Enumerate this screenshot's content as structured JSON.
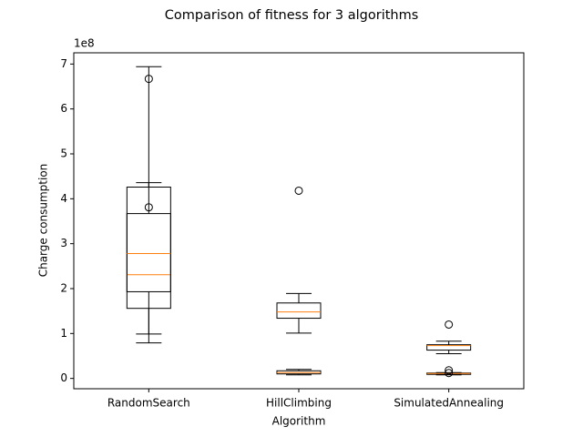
{
  "chart_data": {
    "type": "box",
    "title": "Comparison of fitness for 3 algorithms",
    "x_label": "Algorithm",
    "y_label": "Charge consumption",
    "y_offset_label": "1e8",
    "categories": [
      "RandomSearch",
      "HillClimbing",
      "SimulatedAnnealing"
    ],
    "box_color": "#000000",
    "median_color": "#ff7f0e",
    "series": [
      {
        "values": [
          {
            "whislo": 0.79,
            "q1": 1.56,
            "med": 2.31,
            "q3": 4.26,
            "whishi": 6.94,
            "fliers": []
          },
          {
            "whislo": 1.01,
            "q1": 1.34,
            "med": 1.48,
            "q3": 1.68,
            "whishi": 1.89,
            "fliers": [
              4.18
            ]
          },
          {
            "whislo": 0.55,
            "q1": 0.63,
            "med": 0.73,
            "q3": 0.75,
            "whishi": 0.83,
            "fliers": [
              1.2
            ]
          }
        ]
      },
      {
        "values": [
          {
            "whislo": 0.99,
            "q1": 1.93,
            "med": 2.78,
            "q3": 3.67,
            "whishi": 4.36,
            "fliers": [
              3.81,
              6.67
            ]
          },
          {
            "whislo": 0.08,
            "q1": 0.1,
            "med": 0.13,
            "q3": 0.17,
            "whishi": 0.2,
            "fliers": []
          },
          {
            "whislo": 0.08,
            "q1": 0.09,
            "med": 0.11,
            "q3": 0.12,
            "whishi": 0.13,
            "fliers": [
              0.12,
              0.18
            ]
          }
        ]
      }
    ],
    "ylim": [
      -0.23,
      7.25
    ],
    "yticks": [
      0,
      1,
      2,
      3,
      4,
      5,
      6,
      7
    ]
  }
}
